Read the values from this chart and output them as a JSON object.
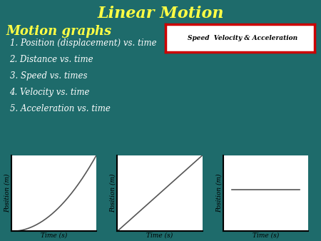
{
  "title": "Linear Motion",
  "title_color": "#FFFF44",
  "title_fontsize": 16,
  "bg_color": "#1E6B6B",
  "subtitle": "Motion graphs",
  "subtitle_color": "#FFFF44",
  "subtitle_fontsize": 13,
  "list_items": [
    "1. Position (displacement) vs. time",
    "2. Distance vs. time",
    "3. Speed vs. times",
    "4. Velocity vs. time",
    "5. Acceleration vs. time"
  ],
  "list_color": "#FFFFFF",
  "list_fontsize": 8.5,
  "box_label": "Speed  Velocity & Acceleration",
  "box_edge_color": "#CC0000",
  "graph_ylabel": "Position (m)",
  "graph_xlabel": "Time (s)",
  "graph_bg": "#FFFFFF",
  "graph_line_color": "#555555",
  "graph_label_fontsize": 6.5
}
